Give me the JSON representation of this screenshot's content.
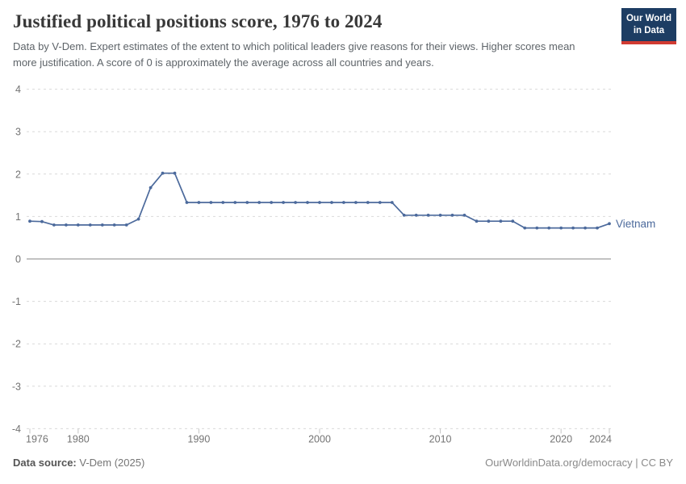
{
  "header": {
    "title": "Justified political positions score, 1976 to 2024",
    "subtitle": "Data by V-Dem. Expert estimates of the extent to which political leaders give reasons for their views. Higher scores mean more justification. A score of 0 is approximately the average across all countries and years.",
    "logo": {
      "line1": "Our World",
      "line2": "in Data",
      "bg_color": "#1d3d63",
      "accent_color": "#d13b32"
    }
  },
  "chart_data": {
    "type": "line",
    "title": "Justified political positions score, 1976 to 2024",
    "xlabel": "",
    "ylabel": "",
    "xlim": [
      1976,
      2024
    ],
    "ylim": [
      -4,
      4
    ],
    "x_ticks": [
      1976,
      1980,
      1990,
      2000,
      2010,
      2020,
      2024
    ],
    "y_ticks": [
      4,
      3,
      2,
      1,
      0,
      -1,
      -2,
      -3,
      -4
    ],
    "grid": "horizontal-dashed",
    "zero_line_solid": true,
    "gridline_color": "#d9d9d9",
    "zero_line_color": "#9e9e9e",
    "axis_text_color": "#737373",
    "legend_position": "end-of-line-label",
    "series": [
      {
        "name": "Vietnam",
        "color": "#4C6A9C",
        "x": [
          1976,
          1977,
          1978,
          1979,
          1980,
          1981,
          1982,
          1983,
          1984,
          1985,
          1986,
          1987,
          1988,
          1989,
          1990,
          1991,
          1992,
          1993,
          1994,
          1995,
          1996,
          1997,
          1998,
          1999,
          2000,
          2001,
          2002,
          2003,
          2004,
          2005,
          2006,
          2007,
          2008,
          2009,
          2010,
          2011,
          2012,
          2013,
          2014,
          2015,
          2016,
          2017,
          2018,
          2019,
          2020,
          2021,
          2022,
          2023,
          2024
        ],
        "values": [
          0.89,
          0.88,
          0.8,
          0.8,
          0.8,
          0.8,
          0.8,
          0.8,
          0.8,
          0.94,
          1.68,
          2.02,
          2.02,
          1.33,
          1.33,
          1.33,
          1.33,
          1.33,
          1.33,
          1.33,
          1.33,
          1.33,
          1.33,
          1.33,
          1.33,
          1.33,
          1.33,
          1.33,
          1.33,
          1.33,
          1.33,
          1.03,
          1.03,
          1.03,
          1.03,
          1.03,
          1.03,
          0.89,
          0.89,
          0.89,
          0.89,
          0.73,
          0.73,
          0.73,
          0.73,
          0.73,
          0.73,
          0.73,
          0.83
        ]
      }
    ]
  },
  "footer": {
    "source_label": "Data source:",
    "source_value": "V-Dem (2025)",
    "attribution": "OurWorldinData.org/democracy | CC BY"
  }
}
